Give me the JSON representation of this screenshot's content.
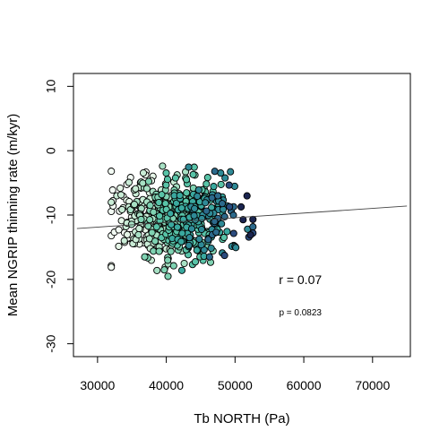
{
  "chart_data": {
    "type": "scatter",
    "xlabel": "Tb NORTH (Pa)",
    "ylabel": "Mean NGRIP thinning rate (m/kyr)",
    "xlim": [
      26500,
      75500
    ],
    "ylim": [
      -32.0,
      12.0
    ],
    "x_ticks": [
      30000,
      40000,
      50000,
      60000,
      70000
    ],
    "x_tick_labels": [
      "30000",
      "40000",
      "50000",
      "60000",
      "70000"
    ],
    "y_ticks": [
      -30,
      -20,
      -10,
      0,
      10
    ],
    "y_tick_labels": [
      "-30",
      "-20",
      "-10",
      "0",
      "10"
    ],
    "annotations": [
      {
        "text": "r = 0.07",
        "x": 59500,
        "y": -20.7
      },
      {
        "text": "p = 0.0823",
        "x": 59500,
        "y": -25.6
      }
    ],
    "regression_line": {
      "x": [
        27000,
        75000
      ],
      "y": [
        -12.1,
        -8.6
      ]
    },
    "point_colors": [
      "#f3fbf4",
      "#e6f6e8",
      "#c9ecd6",
      "#a7e0c4",
      "#7fd2b2",
      "#58c3a7",
      "#3aa99f",
      "#2f8a96",
      "#2c6a8c",
      "#2b4b7e",
      "#1b2550"
    ],
    "n_points": 650,
    "grid": false,
    "legend": "none"
  }
}
